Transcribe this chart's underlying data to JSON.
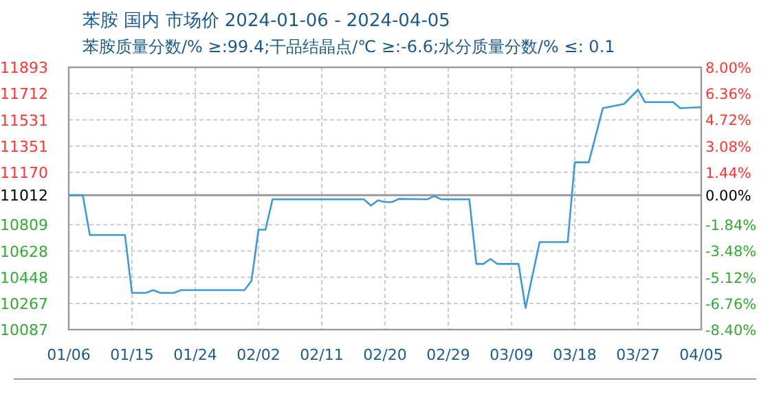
{
  "chart_data": {
    "type": "line",
    "title": "苯胺 国内 市场价 2024-01-06 - 2024-04-05",
    "subtitle": "苯胺质量分数/% ≥:99.4;干品结晶点/℃  ≥:-6.6;水分质量分数/%  ≤: 0.1",
    "x": [
      "2024-01-06",
      "2024-01-08",
      "2024-01-09",
      "2024-01-14",
      "2024-01-15",
      "2024-01-17",
      "2024-01-18",
      "2024-01-19",
      "2024-01-21",
      "2024-01-22",
      "2024-01-31",
      "2024-02-01",
      "2024-02-02",
      "2024-02-03",
      "2024-02-04",
      "2024-02-17",
      "2024-02-18",
      "2024-02-19",
      "2024-02-20",
      "2024-02-21",
      "2024-02-22",
      "2024-02-26",
      "2024-02-27",
      "2024-02-28",
      "2024-03-03",
      "2024-03-04",
      "2024-03-05",
      "2024-03-06",
      "2024-03-07",
      "2024-03-10",
      "2024-03-11",
      "2024-03-13",
      "2024-03-17",
      "2024-03-18",
      "2024-03-20",
      "2024-03-22",
      "2024-03-25",
      "2024-03-27",
      "2024-03-28",
      "2024-04-01",
      "2024-04-02",
      "2024-04-05"
    ],
    "series": [
      {
        "color": "#3d9ad6",
        "values": [
          11012,
          11012,
          10738,
          10738,
          10340,
          10340,
          10359,
          10340,
          10340,
          10359,
          10359,
          10422,
          10775,
          10775,
          10984,
          10984,
          10940,
          10977,
          10965,
          10965,
          10987,
          10984,
          11006,
          10984,
          10984,
          10539,
          10539,
          10573,
          10539,
          10539,
          10236,
          10690,
          10690,
          11239,
          11239,
          11612,
          11640,
          11738,
          11653,
          11653,
          11612,
          11618
        ]
      }
    ],
    "xlim": [
      "2024-01-06",
      "2024-04-05"
    ],
    "xticks": [
      {
        "value": "2024-01-06",
        "label": "01/06"
      },
      {
        "value": "2024-01-15",
        "label": "01/15"
      },
      {
        "value": "2024-01-24",
        "label": "01/24"
      },
      {
        "value": "2024-02-02",
        "label": "02/02"
      },
      {
        "value": "2024-02-11",
        "label": "02/11"
      },
      {
        "value": "2024-02-20",
        "label": "02/20"
      },
      {
        "value": "2024-02-29",
        "label": "02/29"
      },
      {
        "value": "2024-03-09",
        "label": "03/09"
      },
      {
        "value": "2024-03-18",
        "label": "03/18"
      },
      {
        "value": "2024-03-27",
        "label": "03/27"
      },
      {
        "value": "2024-04-05",
        "label": "04/05"
      }
    ],
    "ylim": [
      10087,
      11893
    ],
    "yticks": [
      10087,
      10267,
      10448,
      10628,
      10809,
      11012,
      11170,
      11351,
      11531,
      11712,
      11893
    ],
    "y2lim": [
      -8.4,
      8.0
    ],
    "y2ticks": [
      {
        "value": -8.4,
        "label": "-8.40%"
      },
      {
        "value": -6.76,
        "label": "-6.76%"
      },
      {
        "value": -5.12,
        "label": "-5.12%"
      },
      {
        "value": -3.48,
        "label": "-3.48%"
      },
      {
        "value": -1.84,
        "label": "-1.84%"
      },
      {
        "value": 0,
        "label": "0.00%"
      },
      {
        "value": 1.44,
        "label": "1.44%"
      },
      {
        "value": 3.08,
        "label": "3.08%"
      },
      {
        "value": 4.72,
        "label": "4.72%"
      },
      {
        "value": 6.36,
        "label": "6.36%"
      },
      {
        "value": 8.0,
        "label": "8.00%"
      }
    ],
    "ref_lines": [
      {
        "axis": "y",
        "value": 11012,
        "color": "#999999",
        "line_style": "solid"
      }
    ],
    "grid": true,
    "marker": "none",
    "line_style": "solid"
  }
}
